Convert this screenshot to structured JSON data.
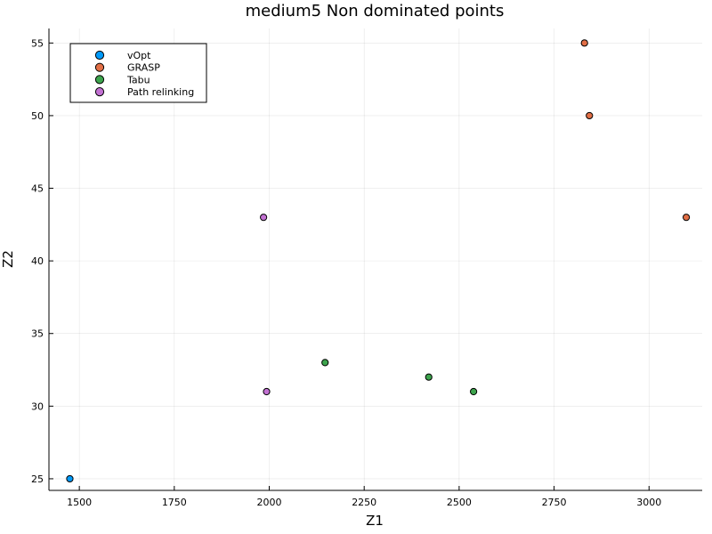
{
  "chart_data": {
    "type": "scatter",
    "title": "medium5 Non dominated points",
    "xlabel": "Z1",
    "ylabel": "Z2",
    "xlim": [
      1420,
      3140
    ],
    "ylim": [
      24.2,
      56
    ],
    "xticks": [
      1500,
      1750,
      2000,
      2250,
      2500,
      2750,
      3000
    ],
    "yticks": [
      25,
      30,
      35,
      40,
      45,
      50,
      55
    ],
    "grid": true,
    "legend_position": "top-left",
    "series": [
      {
        "name": "vOpt",
        "color": "#009af9",
        "points": [
          [
            1475,
            25
          ]
        ]
      },
      {
        "name": "GRASP",
        "color": "#e26f46",
        "points": [
          [
            2830,
            55
          ],
          [
            2843,
            50
          ],
          [
            3098,
            43
          ]
        ]
      },
      {
        "name": "Tabu",
        "color": "#3da44d",
        "points": [
          [
            2147,
            33
          ],
          [
            2420,
            32
          ],
          [
            2538,
            31
          ]
        ]
      },
      {
        "name": "Path relinking",
        "color": "#c271d2",
        "points": [
          [
            1985,
            43
          ],
          [
            1993,
            31
          ]
        ]
      }
    ]
  }
}
